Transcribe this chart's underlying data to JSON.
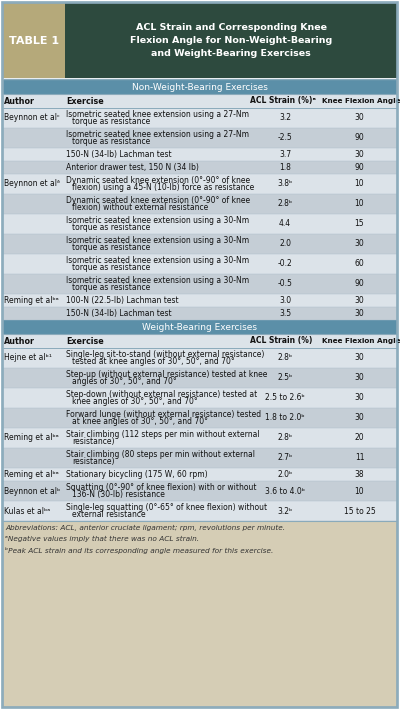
{
  "title_box_color": "#2d4a3e",
  "table_label": "TABLE 1",
  "table_label_bg": "#b5a97a",
  "title_line1": "ACL Strain and Corresponding Knee",
  "title_line2": "Flexion Angle for Non-Weight-Bearing",
  "title_line3": "and Weight-Bearing Exercises",
  "section_header_color": "#5b8fa8",
  "section1": "Non-Weight-Bearing Exercises",
  "section2": "Weight-Bearing Exercises",
  "bg_light": "#dce3e9",
  "bg_dark": "#c5ced6",
  "footer_bg": "#d5cdb5",
  "line_color": "#8aaabb",
  "nwb_rows": [
    [
      "Beynnon et alᶜ",
      "Isometric seated knee extension using a 27-Nm\n    torque as resistance",
      "3.2",
      "30"
    ],
    [
      "",
      "Isometric seated knee extension using a 27-Nm\n    torque as resistance",
      "-2.5",
      "90"
    ],
    [
      "",
      "150-N (34-lb) Lachman test",
      "3.7",
      "30"
    ],
    [
      "",
      "Anterior drawer test, 150 N (34 lb)",
      "1.8",
      "90"
    ],
    [
      "Beynnon et alᶞ",
      "Dynamic seated knee extension (0°-90° of knee\n    flexion) using a 45-N (10-lb) force as resistance",
      "3.8ᵇ",
      "10"
    ],
    [
      "",
      "Dynamic seated knee extension (0°-90° of knee\n    flexion) without external resistance",
      "2.8ᵇ",
      "10"
    ],
    [
      "",
      "Isometric seated knee extension using a 30-Nm\n    torque as resistance",
      "4.4",
      "15"
    ],
    [
      "",
      "Isometric seated knee extension using a 30-Nm\n    torque as resistance",
      "2.0",
      "30"
    ],
    [
      "",
      "Isometric seated knee extension using a 30-Nm\n    torque as resistance",
      "-0.2",
      "60"
    ],
    [
      "",
      "Isometric seated knee extension using a 30-Nm\n    torque as resistance",
      "-0.5",
      "90"
    ],
    [
      "Reming et alᵇᵃ",
      "100-N (22.5-lb) Lachman test",
      "3.0",
      "30"
    ],
    [
      "",
      "150-N (34-lb) Lachman test",
      "3.5",
      "30"
    ]
  ],
  "wb_rows": [
    [
      "Hejne et alᵇ¹",
      "Single-leg sit-to-stand (without external resistance)\n    tested at knee angles of 30°, 50°, and 70°",
      "2.8ᵇ",
      "30"
    ],
    [
      "",
      "Step-up (without external resistance) tested at knee\n    angles of 30°, 50°, and 70°",
      "2.5ᵇ",
      "30"
    ],
    [
      "",
      "Step-down (without external resistance) tested at\n    knee angles of 30°, 50°, and 70°",
      "2.5 to 2.6ᵇ",
      "30"
    ],
    [
      "",
      "Forward lunge (without external resistance) tested\n    at knee angles of 30°, 50°, and 70°",
      "1.8 to 2.0ᵇ",
      "30"
    ],
    [
      "Reming et alᵇᵃ",
      "Stair climbing (112 steps per min without external\n    resistance)",
      "2.8ᵇ",
      "20"
    ],
    [
      "",
      "Stair climbing (80 steps per min without external\n    resistance)",
      "2.7ᵇ",
      "11"
    ],
    [
      "Reming et alᵇᵃ",
      "Stationary bicycling (175 W, 60 rpm)",
      "2.0ᵇ",
      "38"
    ],
    [
      "Beynnon et alᵇ",
      "Squatting (0°-90° of knee flexion) with or without\n    136-N (30-lb) resistance",
      "3.6 to 4.0ᵇ",
      "10"
    ],
    [
      "Kulas et alᵇᵃ",
      "Single-leg squatting (0°-65° of knee flexion) without\n    external resistance",
      "3.2ᵇ",
      "15 to 25"
    ]
  ],
  "footer_lines": [
    "Abbreviations: ACL, anterior cruciate ligament; rpm, revolutions per minute.",
    "ᵃNegative values imply that there was no ACL strain.",
    "ᵇPeak ACL strain and its corresponding angle measured for this exercise."
  ]
}
